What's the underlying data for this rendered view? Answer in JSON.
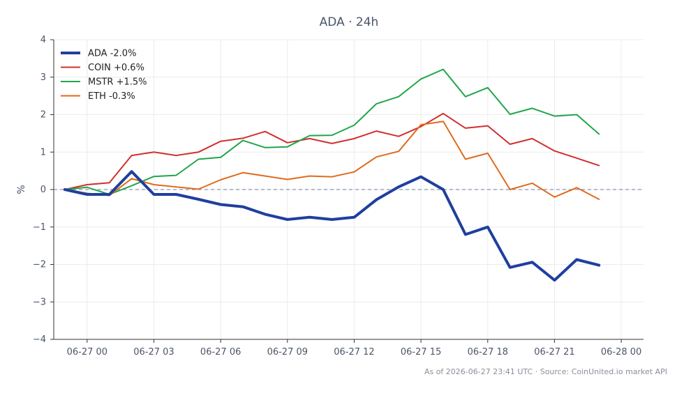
{
  "chart_data": {
    "type": "line",
    "title": "ADA · 24h",
    "xlabel": "",
    "ylabel": "%",
    "ylim": [
      -4,
      4
    ],
    "xlim_hours": [
      -1.5,
      25
    ],
    "x_tick_labels": [
      "06-27 00",
      "06-27 03",
      "06-27 06",
      "06-27 09",
      "06-27 12",
      "06-27 15",
      "06-27 18",
      "06-27 21",
      "06-28 00"
    ],
    "y_tick_labels": [
      "−4",
      "−3",
      "−2",
      "−1",
      "0",
      "1",
      "2",
      "3",
      "4"
    ],
    "grid": true,
    "legend_position": "top-left",
    "x": [
      "06-26 23:00",
      "06-27 00:00",
      "06-27 01:00",
      "06-27 02:00",
      "06-27 03:00",
      "06-27 04:00",
      "06-27 05:00",
      "06-27 06:00",
      "06-27 07:00",
      "06-27 08:00",
      "06-27 09:00",
      "06-27 10:00",
      "06-27 11:00",
      "06-27 12:00",
      "06-27 13:00",
      "06-27 14:00",
      "06-27 15:00",
      "06-27 16:00",
      "06-27 17:00",
      "06-27 18:00",
      "06-27 19:00",
      "06-27 20:00",
      "06-27 21:00",
      "06-27 22:00",
      "06-27 23:00"
    ],
    "series": [
      {
        "name": "ADA -2.0%",
        "color": "#1f3f9f",
        "width": 4,
        "values": [
          0.0,
          -0.13,
          -0.13,
          0.48,
          -0.13,
          -0.13,
          -0.26,
          -0.4,
          -0.46,
          -0.66,
          -0.8,
          -0.74,
          -0.8,
          -0.74,
          -0.27,
          0.07,
          0.34,
          0.0,
          -1.2,
          -1.0,
          -2.08,
          -1.94,
          -2.42,
          -1.87,
          -2.02
        ]
      },
      {
        "name": "COIN +0.6%",
        "color": "#d0302f",
        "width": 2,
        "values": [
          0.0,
          0.13,
          0.18,
          0.91,
          1.0,
          0.91,
          1.0,
          1.29,
          1.37,
          1.55,
          1.25,
          1.36,
          1.23,
          1.36,
          1.56,
          1.42,
          1.68,
          2.03,
          1.64,
          1.7,
          1.21,
          1.36,
          1.03,
          0.84,
          0.64
        ]
      },
      {
        "name": "MSTR +1.5%",
        "color": "#1fa64a",
        "width": 2,
        "values": [
          0.0,
          0.06,
          -0.13,
          0.1,
          0.35,
          0.38,
          0.81,
          0.86,
          1.31,
          1.12,
          1.14,
          1.44,
          1.45,
          1.72,
          2.29,
          2.48,
          2.95,
          3.21,
          2.48,
          2.72,
          2.01,
          2.17,
          1.96,
          2.0,
          1.48
        ]
      },
      {
        "name": "ETH -0.3%",
        "color": "#e06a1b",
        "width": 2,
        "values": [
          0.0,
          -0.1,
          -0.16,
          0.29,
          0.13,
          0.07,
          0.01,
          0.26,
          0.45,
          0.36,
          0.27,
          0.36,
          0.34,
          0.47,
          0.87,
          1.02,
          1.73,
          1.82,
          0.81,
          0.97,
          0.0,
          0.17,
          -0.2,
          0.05,
          -0.26
        ]
      }
    ],
    "reference_line": {
      "y": 0,
      "style": "dashed",
      "color": "#8a94b8"
    }
  },
  "footer": "As of 2026-06-27 23:41 UTC · Source: CoinUnited.io market API"
}
